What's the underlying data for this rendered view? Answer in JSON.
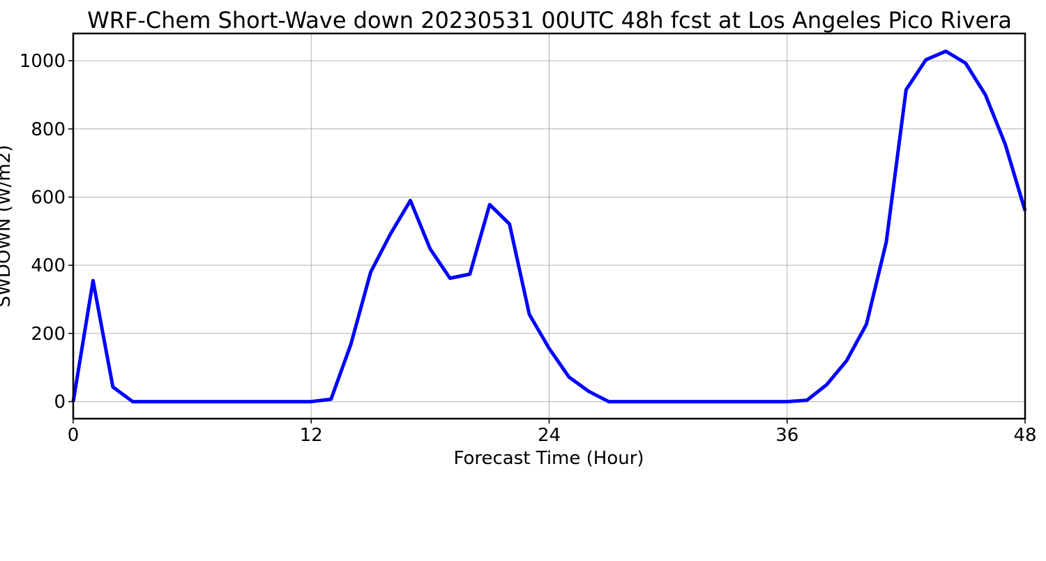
{
  "chart_data": {
    "type": "line",
    "title": "WRF-Chem Short-Wave down  20230531 00UTC 48h fcst at Los Angeles Pico Rivera",
    "xlabel": "Forecast Time (Hour)",
    "ylabel": "SWDOWN  (W/m2)",
    "xlim": [
      0,
      48
    ],
    "ylim": [
      -50,
      1080
    ],
    "xticks": [
      0,
      12,
      24,
      36,
      48
    ],
    "xtick_labels": [
      "0",
      "12",
      "24",
      "36",
      "48"
    ],
    "yticks": [
      0,
      200,
      400,
      600,
      800,
      1000
    ],
    "ytick_labels": [
      "0",
      "200",
      "400",
      "600",
      "800",
      "1000"
    ],
    "grid": true,
    "line_color": "#0000ff",
    "series": [
      {
        "x": [
          0,
          1,
          2,
          3,
          4,
          5,
          6,
          7,
          8,
          9,
          10,
          11,
          12,
          13,
          14,
          15,
          16,
          17,
          18,
          19,
          20,
          21,
          22,
          23,
          24,
          25,
          26,
          27,
          28,
          29,
          30,
          31,
          32,
          33,
          34,
          35,
          36,
          37,
          38,
          39,
          40,
          41,
          42,
          43,
          44,
          45,
          46,
          47,
          48
        ],
        "y": [
          0,
          355,
          43,
          0,
          0,
          0,
          0,
          0,
          0,
          0,
          0,
          0,
          0,
          7,
          168,
          380,
          492,
          590,
          448,
          362,
          374,
          578,
          521,
          256,
          156,
          72,
          30,
          0,
          0,
          0,
          0,
          0,
          0,
          0,
          0,
          0,
          0,
          4,
          50,
          120,
          227,
          468,
          915,
          1003,
          1028,
          993,
          900,
          755,
          560
        ]
      }
    ]
  }
}
